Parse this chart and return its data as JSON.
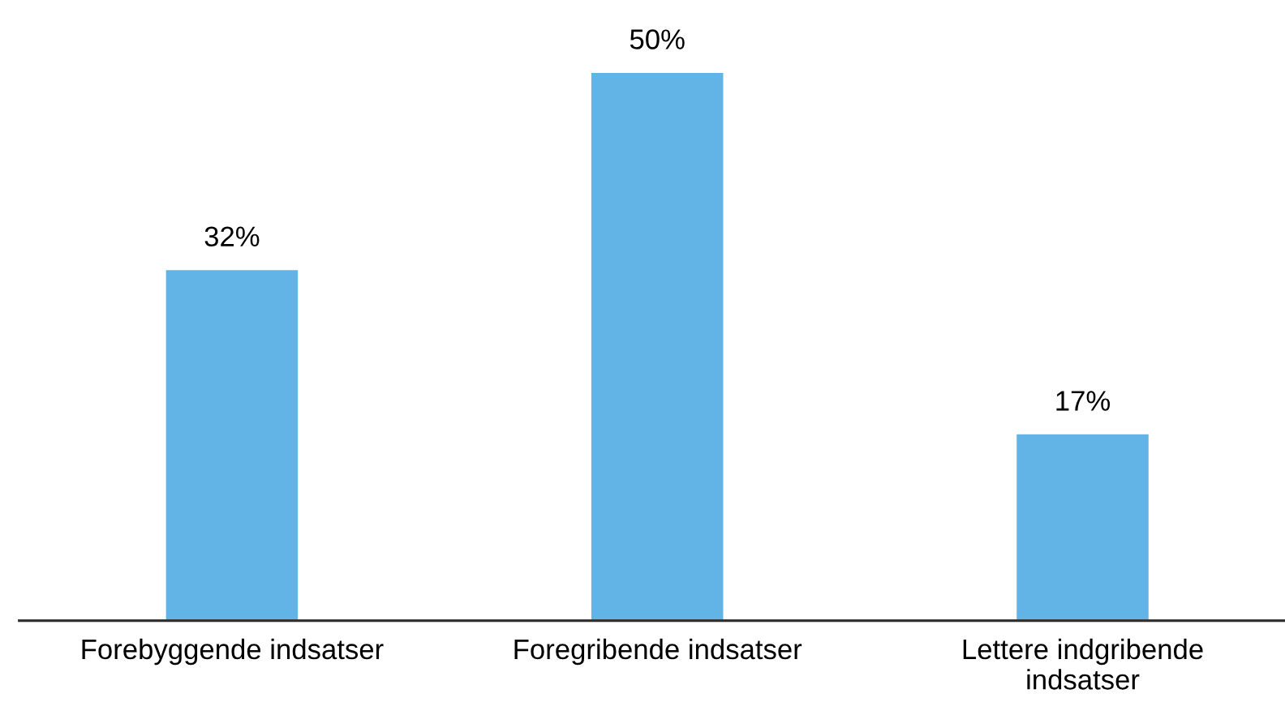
{
  "chart_data": {
    "type": "bar",
    "categories": [
      "Forebyggende indsatser",
      "Foregribende indsatser",
      "Lettere indgribende\nindsatser"
    ],
    "values": [
      32,
      50,
      17
    ],
    "value_labels": [
      "32%",
      "50%",
      "17%"
    ],
    "color": "#63b4e6",
    "tick_labels": "x",
    "grid": false,
    "legend": false
  }
}
